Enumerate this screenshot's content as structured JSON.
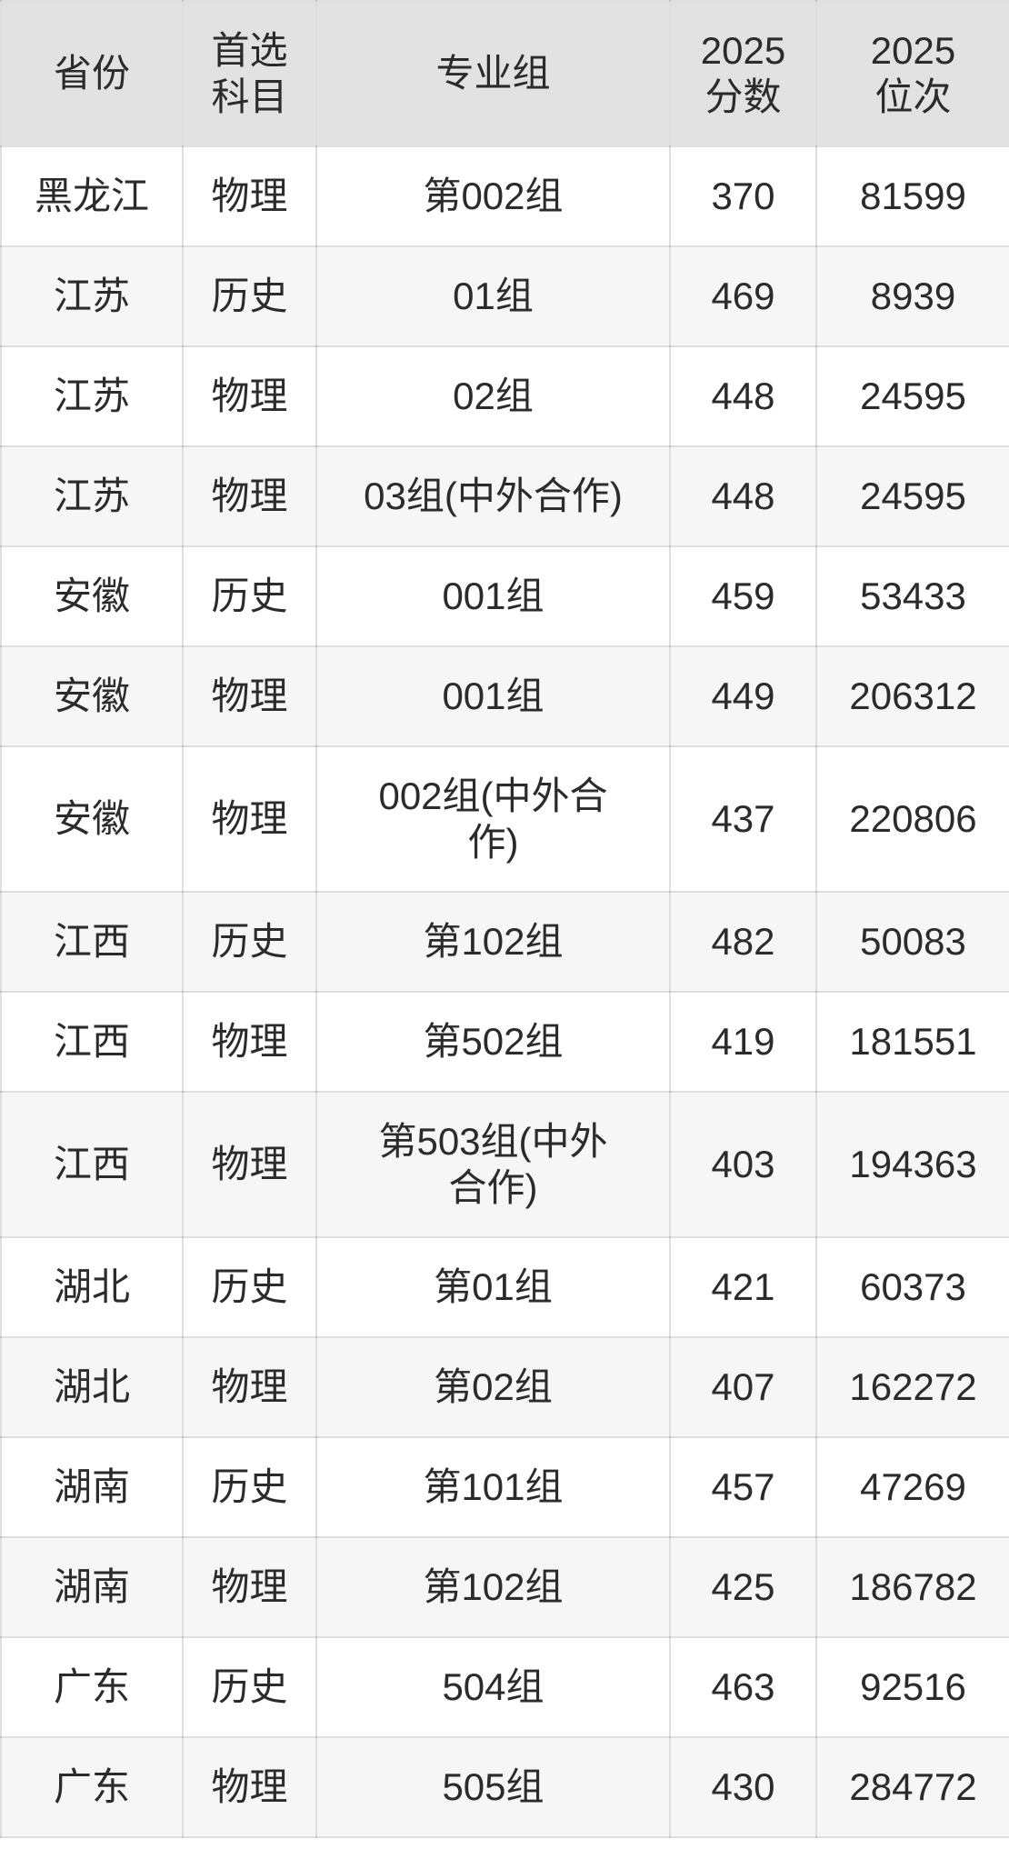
{
  "chart_data": {
    "type": "table",
    "title": "",
    "columns": [
      "省份",
      "首选科目",
      "专业组",
      "2025分数",
      "2025位次"
    ],
    "rows": [
      [
        "黑龙江",
        "物理",
        "第002组",
        370,
        81599
      ],
      [
        "江苏",
        "历史",
        "01组",
        469,
        8939
      ],
      [
        "江苏",
        "物理",
        "02组",
        448,
        24595
      ],
      [
        "江苏",
        "物理",
        "03组(中外合作)",
        448,
        24595
      ],
      [
        "安徽",
        "历史",
        "001组",
        459,
        53433
      ],
      [
        "安徽",
        "物理",
        "001组",
        449,
        206312
      ],
      [
        "安徽",
        "物理",
        "002组(中外合作)",
        437,
        220806
      ],
      [
        "江西",
        "历史",
        "第102组",
        482,
        50083
      ],
      [
        "江西",
        "物理",
        "第502组",
        419,
        181551
      ],
      [
        "江西",
        "物理",
        "第503组(中外合作)",
        403,
        194363
      ],
      [
        "湖北",
        "历史",
        "第01组",
        421,
        60373
      ],
      [
        "湖北",
        "物理",
        "第02组",
        407,
        162272
      ],
      [
        "湖南",
        "历史",
        "第101组",
        457,
        47269
      ],
      [
        "湖南",
        "物理",
        "第102组",
        425,
        186782
      ],
      [
        "广东",
        "历史",
        "504组",
        463,
        92516
      ],
      [
        "广东",
        "物理",
        "505组",
        430,
        284772
      ]
    ]
  },
  "table": {
    "headers": [
      "省份",
      "首选\n科目",
      "专业组",
      "2025\n分数",
      "2025\n位次"
    ],
    "rows": [
      {
        "province": "黑龙江",
        "subject": "物理",
        "group": "第002组",
        "score": "370",
        "rank": "81599"
      },
      {
        "province": "江苏",
        "subject": "历史",
        "group": "01组",
        "score": "469",
        "rank": "8939"
      },
      {
        "province": "江苏",
        "subject": "物理",
        "group": "02组",
        "score": "448",
        "rank": "24595"
      },
      {
        "province": "江苏",
        "subject": "物理",
        "group": "03组(中外合作)",
        "score": "448",
        "rank": "24595"
      },
      {
        "province": "安徽",
        "subject": "历史",
        "group": "001组",
        "score": "459",
        "rank": "53433"
      },
      {
        "province": "安徽",
        "subject": "物理",
        "group": "001组",
        "score": "449",
        "rank": "206312"
      },
      {
        "province": "安徽",
        "subject": "物理",
        "group": "002组(中外合\n作)",
        "score": "437",
        "rank": "220806"
      },
      {
        "province": "江西",
        "subject": "历史",
        "group": "第102组",
        "score": "482",
        "rank": "50083"
      },
      {
        "province": "江西",
        "subject": "物理",
        "group": "第502组",
        "score": "419",
        "rank": "181551"
      },
      {
        "province": "江西",
        "subject": "物理",
        "group": "第503组(中外\n合作)",
        "score": "403",
        "rank": "194363"
      },
      {
        "province": "湖北",
        "subject": "历史",
        "group": "第01组",
        "score": "421",
        "rank": "60373"
      },
      {
        "province": "湖北",
        "subject": "物理",
        "group": "第02组",
        "score": "407",
        "rank": "162272"
      },
      {
        "province": "湖南",
        "subject": "历史",
        "group": "第101组",
        "score": "457",
        "rank": "47269"
      },
      {
        "province": "湖南",
        "subject": "物理",
        "group": "第102组",
        "score": "425",
        "rank": "186782"
      },
      {
        "province": "广东",
        "subject": "历史",
        "group": "504组",
        "score": "463",
        "rank": "92516"
      },
      {
        "province": "广东",
        "subject": "物理",
        "group": "505组",
        "score": "430",
        "rank": "284772"
      }
    ],
    "colors": {
      "header_bg": "#e2e2e2",
      "row_bg": "#ffffff",
      "row_alt_bg": "#f6f6f6",
      "border": "#d9d9d9",
      "text": "#2b2b2b"
    }
  }
}
